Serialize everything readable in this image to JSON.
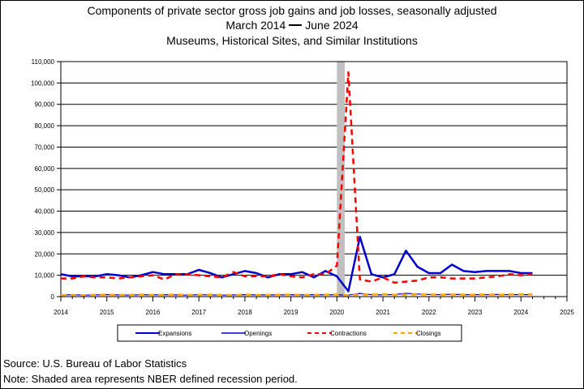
{
  "header": {
    "title": "Components of private sector gross job gains and job losses, seasonally adjusted",
    "period_start": "March 2014",
    "period_end": "June 2024",
    "subtitle": "Museums, Historical Sites, and Similar Institutions"
  },
  "footer": {
    "source": "Source: U.S. Bureau of Labor Statistics",
    "note": "Note: Shaded area represents NBER defined recession period."
  },
  "chart_data": {
    "type": "line",
    "xlim": [
      2014,
      2025
    ],
    "ylim": [
      0,
      110000
    ],
    "x_ticks": [
      2014,
      2015,
      2016,
      2017,
      2018,
      2019,
      2020,
      2021,
      2022,
      2023,
      2024,
      2025
    ],
    "x_tick_labels": [
      "2014",
      "2015",
      "2016",
      "2017",
      "2018",
      "2019",
      "2020",
      "2021",
      "2022",
      "2023",
      "2024",
      "2025"
    ],
    "y_ticks": [
      0,
      10000,
      20000,
      30000,
      40000,
      50000,
      60000,
      70000,
      80000,
      90000,
      100000,
      110000
    ],
    "y_tick_labels": [
      "0",
      "10,000",
      "20,000",
      "30,000",
      "40,000",
      "50,000",
      "60,000",
      "70,000",
      "80,000",
      "90,000",
      "100,000",
      "110,000"
    ],
    "grid": "horizontal",
    "recession_shading": {
      "start": 2020.0,
      "end": 2020.17,
      "color": "#c0c0c0"
    },
    "legend_position": "bottom",
    "x": [
      2014.0,
      2014.25,
      2014.5,
      2014.75,
      2015.0,
      2015.25,
      2015.5,
      2015.75,
      2016.0,
      2016.25,
      2016.5,
      2016.75,
      2017.0,
      2017.25,
      2017.5,
      2017.75,
      2018.0,
      2018.25,
      2018.5,
      2018.75,
      2019.0,
      2019.25,
      2019.5,
      2019.75,
      2020.0,
      2020.25,
      2020.5,
      2020.75,
      2021.0,
      2021.25,
      2021.5,
      2021.75,
      2022.0,
      2022.25,
      2022.5,
      2022.75,
      2023.0,
      2023.25,
      2023.5,
      2023.75,
      2024.0,
      2024.25
    ],
    "series": [
      {
        "name": "Expansions",
        "color": "#0000cc",
        "style": "solid",
        "width": 2.5,
        "values": [
          10500,
          9500,
          9500,
          9500,
          10500,
          10000,
          9000,
          10000,
          11500,
          10500,
          10500,
          10500,
          12500,
          11000,
          9000,
          10500,
          12000,
          11000,
          9000,
          10500,
          10500,
          11500,
          9000,
          12000,
          9500,
          2500,
          28000,
          10500,
          9000,
          10500,
          21500,
          14000,
          11000,
          11000,
          15000,
          12000,
          11500,
          12000,
          12000,
          12000,
          11000,
          11000
        ]
      },
      {
        "name": "Openings",
        "color": "#0000cc",
        "style": "solid",
        "width": 1.2,
        "values": [
          700,
          900,
          700,
          800,
          900,
          800,
          700,
          900,
          800,
          900,
          800,
          700,
          900,
          800,
          700,
          800,
          900,
          800,
          800,
          800,
          900,
          800,
          900,
          800,
          900,
          700,
          1500,
          900,
          800,
          1000,
          1500,
          1200,
          1000,
          900,
          1100,
          900,
          900,
          900,
          1000,
          900,
          900,
          900
        ]
      },
      {
        "name": "Contractions",
        "color": "#ff0000",
        "style": "dashed",
        "width": 2.5,
        "values": [
          8500,
          8500,
          9500,
          9000,
          9000,
          8500,
          9000,
          9500,
          10000,
          8000,
          10500,
          10500,
          10000,
          9500,
          9000,
          11500,
          9500,
          9500,
          9500,
          10500,
          9500,
          9000,
          10500,
          10500,
          14500,
          105000,
          8000,
          7000,
          9000,
          6500,
          7000,
          7500,
          9000,
          9000,
          8500,
          8500,
          8500,
          9000,
          9500,
          10500,
          10000,
          10500
        ]
      },
      {
        "name": "Closings",
        "color": "#ffa500",
        "style": "dashed",
        "width": 2.5,
        "values": [
          700,
          800,
          700,
          800,
          900,
          800,
          800,
          900,
          800,
          800,
          900,
          800,
          800,
          900,
          800,
          700,
          900,
          800,
          800,
          900,
          900,
          800,
          800,
          900,
          1000,
          700,
          900,
          1000,
          1100,
          900,
          900,
          1000,
          1000,
          900,
          1000,
          900,
          900,
          1000,
          900,
          1000,
          1100,
          1000
        ]
      }
    ]
  }
}
